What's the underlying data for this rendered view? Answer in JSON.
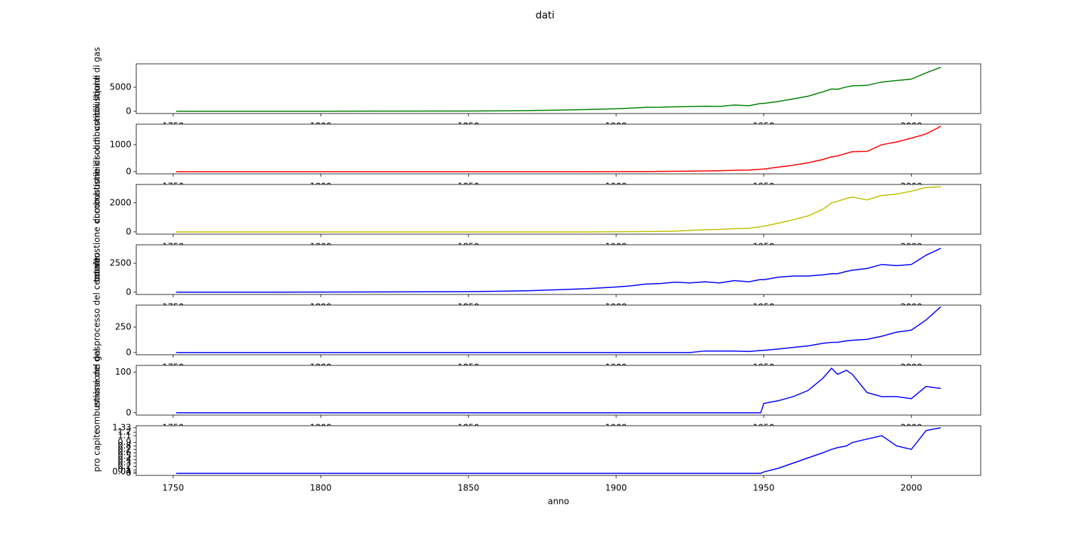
{
  "title": "dati",
  "chart_data": [
    {
      "type": "line",
      "ylabel": "combustione di gas",
      "color": "#008000",
      "x": [
        1751,
        1800,
        1850,
        1860,
        1870,
        1880,
        1890,
        1900,
        1905,
        1910,
        1915,
        1920,
        1925,
        1930,
        1935,
        1940,
        1945,
        1949,
        1950,
        1955,
        1960,
        1965,
        1970,
        1973,
        1975,
        1978,
        1980,
        1985,
        1990,
        1995,
        2000,
        2005,
        2010
      ],
      "values": [
        3,
        8,
        54,
        91,
        147,
        233,
        357,
        534,
        663,
        819,
        836,
        932,
        975,
        1053,
        1000,
        1299,
        1160,
        1639,
        1630,
        2040,
        2577,
        3130,
        4053,
        4640,
        4596,
        5064,
        5300,
        5400,
        6100,
        6400,
        6700,
        8000,
        9167
      ],
      "xlim": [
        1737.5,
        2023.5
      ],
      "xticks": [
        1750,
        1800,
        1850,
        1900,
        1950,
        2000
      ],
      "ylim": [
        -470,
        9880
      ],
      "yticks": [
        0,
        5000
      ]
    },
    {
      "type": "line",
      "ylabel": "combustione di combustibili liquidi",
      "color": "#ff0000",
      "x": [
        1751,
        1800,
        1850,
        1860,
        1870,
        1880,
        1890,
        1900,
        1905,
        1910,
        1915,
        1920,
        1925,
        1930,
        1935,
        1940,
        1945,
        1949,
        1950,
        1955,
        1960,
        1965,
        1970,
        1973,
        1975,
        1978,
        1980,
        1985,
        1990,
        1995,
        2000,
        2005,
        2010
      ],
      "values": [
        0,
        0,
        0,
        0,
        0,
        0,
        0,
        3,
        5,
        7,
        10,
        14,
        20,
        30,
        35,
        50,
        60,
        90,
        97,
        170,
        240,
        330,
        450,
        550,
        580,
        680,
        740,
        750,
        1000,
        1100,
        1240,
        1400,
        1680
      ],
      "xlim": [
        1737.5,
        2023.5
      ],
      "xticks": [
        1750,
        1800,
        1850,
        1900,
        1950,
        2000
      ],
      "ylim": [
        -80,
        1760
      ],
      "yticks": [
        0,
        1000
      ]
    },
    {
      "type": "line",
      "ylabel": "combustione di combustibili solidi",
      "color": "#bfbf00",
      "x": [
        1751,
        1800,
        1850,
        1860,
        1870,
        1880,
        1890,
        1900,
        1905,
        1910,
        1915,
        1920,
        1925,
        1930,
        1935,
        1940,
        1945,
        1949,
        1950,
        1955,
        1960,
        1965,
        1970,
        1973,
        1975,
        1978,
        1980,
        1985,
        1990,
        1995,
        2000,
        2005,
        2010
      ],
      "values": [
        0,
        0,
        0,
        0,
        0,
        0,
        0,
        12,
        15,
        20,
        30,
        50,
        100,
        150,
        170,
        220,
        250,
        360,
        390,
        600,
        830,
        1100,
        1550,
        2000,
        2100,
        2300,
        2400,
        2200,
        2500,
        2600,
        2800,
        3050,
        3100
      ],
      "xlim": [
        1737.5,
        2023.5
      ],
      "xticks": [
        1750,
        1800,
        1850,
        1900,
        1950,
        2000
      ],
      "ylim": [
        -155,
        3260
      ],
      "yticks": [
        0,
        2000
      ]
    },
    {
      "type": "line",
      "ylabel": "totale",
      "color": "#0000ff",
      "x": [
        1751,
        1800,
        1850,
        1860,
        1870,
        1880,
        1890,
        1900,
        1905,
        1910,
        1915,
        1920,
        1925,
        1930,
        1935,
        1940,
        1945,
        1949,
        1950,
        1955,
        1960,
        1965,
        1970,
        1973,
        1975,
        1978,
        1980,
        1985,
        1990,
        1995,
        2000,
        2005,
        2010
      ],
      "values": [
        3,
        10,
        50,
        80,
        130,
        210,
        300,
        450,
        550,
        700,
        750,
        870,
        800,
        900,
        800,
        1000,
        900,
        1100,
        1080,
        1300,
        1400,
        1400,
        1500,
        1600,
        1600,
        1800,
        1900,
        2050,
        2400,
        2300,
        2400,
        3200,
        3800
      ],
      "xlim": [
        1737.5,
        2023.5
      ],
      "xticks": [
        1750,
        1800,
        1850,
        1900,
        1950,
        2000
      ],
      "ylim": [
        -195,
        4100
      ],
      "yticks": [
        0,
        2500
      ]
    },
    {
      "type": "line",
      "ylabel": "emissione del processo del cemento",
      "color": "#0000ff",
      "x": [
        1751,
        1800,
        1850,
        1860,
        1870,
        1880,
        1890,
        1900,
        1905,
        1910,
        1915,
        1920,
        1925,
        1930,
        1935,
        1940,
        1945,
        1949,
        1950,
        1955,
        1960,
        1965,
        1970,
        1973,
        1975,
        1978,
        1980,
        1985,
        1990,
        1995,
        2000,
        2005,
        2010
      ],
      "values": [
        0,
        0,
        0,
        0,
        0,
        0,
        0,
        0,
        0,
        0,
        0,
        0,
        0,
        15,
        15,
        15,
        10,
        20,
        22,
        35,
        50,
        65,
        90,
        100,
        100,
        115,
        120,
        130,
        160,
        200,
        220,
        320,
        450
      ],
      "xlim": [
        1737.5,
        2023.5
      ],
      "xticks": [
        1750,
        1800,
        1850,
        1900,
        1950,
        2000
      ],
      "ylim": [
        -22,
        466
      ],
      "yticks": [
        0,
        250
      ]
    },
    {
      "type": "line",
      "ylabel": "combustione del gas",
      "color": "#0000ff",
      "x": [
        1751,
        1800,
        1850,
        1860,
        1870,
        1880,
        1890,
        1900,
        1905,
        1910,
        1915,
        1920,
        1925,
        1930,
        1935,
        1940,
        1945,
        1949,
        1950,
        1955,
        1960,
        1965,
        1970,
        1973,
        1975,
        1978,
        1980,
        1985,
        1990,
        1995,
        2000,
        2005,
        2010
      ],
      "values": [
        0,
        0,
        0,
        0,
        0,
        0,
        0,
        0,
        0,
        0,
        0,
        0,
        0,
        0,
        0,
        0,
        0,
        0,
        23,
        30,
        40,
        55,
        85,
        110,
        95,
        105,
        95,
        50,
        40,
        40,
        35,
        65,
        60
      ],
      "xlim": [
        1737.5,
        2023.5
      ],
      "xticks": [
        1750,
        1800,
        1850,
        1900,
        1950,
        2000
      ],
      "ylim": [
        -5.6,
        117
      ],
      "yticks": [
        0,
        100
      ]
    },
    {
      "type": "line",
      "ylabel": "pro capite",
      "xlabel": "anno",
      "color": "#0000ff",
      "x": [
        1751,
        1800,
        1850,
        1860,
        1870,
        1880,
        1890,
        1900,
        1905,
        1910,
        1915,
        1920,
        1925,
        1930,
        1935,
        1940,
        1945,
        1949,
        1950,
        1955,
        1960,
        1965,
        1970,
        1973,
        1975,
        1978,
        1980,
        1985,
        1990,
        1995,
        2000,
        2005,
        2010
      ],
      "values": [
        0,
        0,
        0,
        0,
        0,
        0,
        0,
        0,
        0,
        0,
        0,
        0,
        0,
        0,
        0,
        0,
        0,
        0,
        0.04,
        0.15,
        0.3,
        0.45,
        0.6,
        0.7,
        0.75,
        0.8,
        0.9,
        1.0,
        1.1,
        0.8,
        0.7,
        1.25,
        1.33
      ],
      "xlim": [
        1737.5,
        2023.5
      ],
      "xticks": [
        1750,
        1800,
        1850,
        1900,
        1950,
        2000
      ],
      "ylim": [
        -0.06,
        1.39
      ],
      "yticks": [
        0,
        0.04,
        0.1,
        0.2,
        0.3,
        0.4,
        0.5,
        0.6,
        0.7,
        0.8,
        0.9,
        1.1,
        1.2,
        1.33
      ]
    }
  ]
}
